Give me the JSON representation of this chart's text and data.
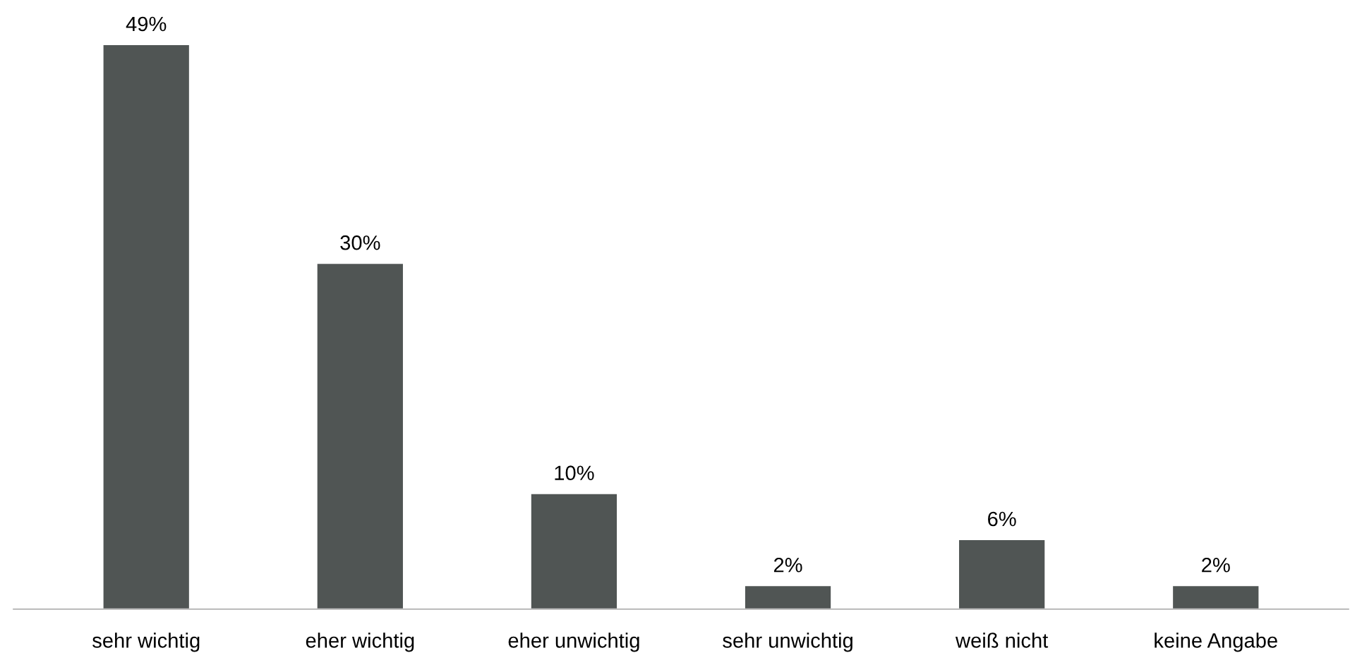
{
  "chart_data": {
    "type": "bar",
    "categories": [
      "sehr wichtig",
      "eher wichtig",
      "eher unwichtig",
      "sehr unwichtig",
      "weiß nicht",
      "keine Angabe"
    ],
    "values": [
      49,
      30,
      10,
      2,
      6,
      2
    ],
    "value_labels": [
      "49%",
      "30%",
      "10%",
      "2%",
      "6%",
      "2%"
    ],
    "color": "#505554",
    "grid": false,
    "legend": false
  }
}
